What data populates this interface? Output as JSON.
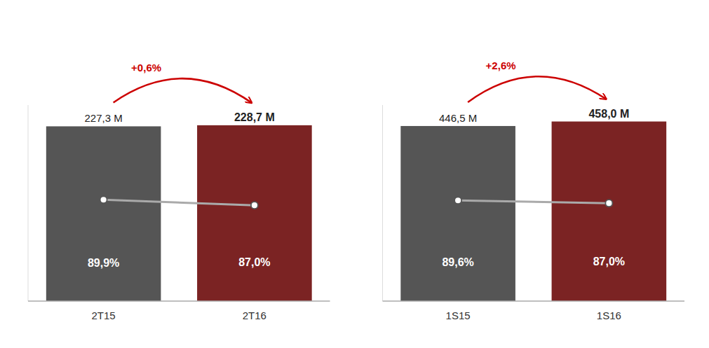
{
  "chart_data": [
    {
      "type": "bar",
      "categories": [
        "2T15",
        "2T16"
      ],
      "ylim": [
        0,
        255
      ],
      "tick_labels": "x",
      "series": [
        {
          "type": "bar",
          "values": [
            227.3,
            228.7
          ],
          "value_labels": [
            "227,3 M",
            "228,7 M"
          ],
          "colors": [
            "#555555",
            "#7b2323"
          ],
          "data_labels": true
        },
        {
          "type": "line",
          "values": [
            131.834,
            124.6415
          ],
          "color": "#aaaaaa",
          "marker": "circle"
        }
      ],
      "annotations": [
        {
          "text": "89,9%",
          "category": "2T15"
        },
        {
          "text": "87,0%",
          "category": "2T16"
        },
        {
          "text": "+0,6%",
          "from": "2T15",
          "to": "2T16",
          "color": "#cc0000"
        }
      ]
    },
    {
      "type": "bar",
      "categories": [
        "1S15",
        "1S16"
      ],
      "ylim": [
        0,
        500
      ],
      "tick_labels": "x",
      "series": [
        {
          "type": "bar",
          "values": [
            446.5,
            458.0
          ],
          "value_labels": [
            "446,5 M",
            "458,0 M"
          ],
          "colors": [
            "#555555",
            "#7b2323"
          ],
          "data_labels": true
        },
        {
          "type": "line",
          "values": [
            256.7375,
            249.61
          ],
          "color": "#aaaaaa",
          "marker": "circle"
        }
      ],
      "annotations": [
        {
          "text": "89,6%",
          "category": "1S15"
        },
        {
          "text": "87,0%",
          "category": "1S16"
        },
        {
          "text": "+2,6%",
          "from": "1S15",
          "to": "1S16",
          "color": "#cc0000"
        }
      ]
    }
  ]
}
